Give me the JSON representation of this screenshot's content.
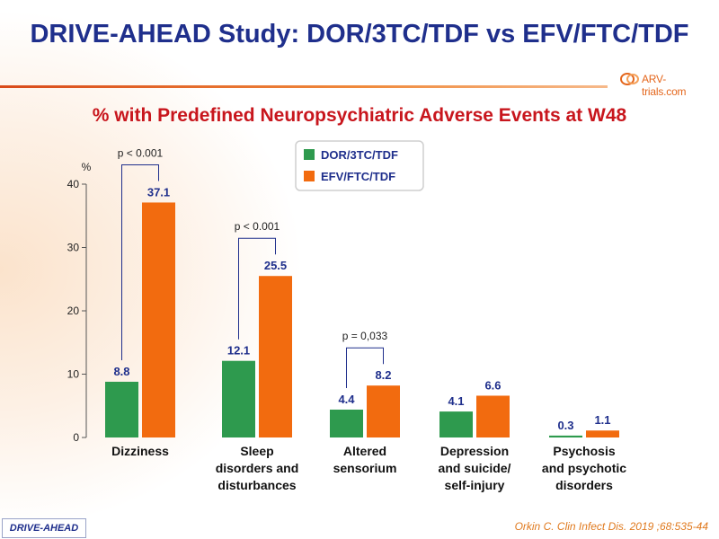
{
  "slide": {
    "title": "DRIVE-AHEAD Study: DOR/3TC/TDF vs EFV/FTC/TDF",
    "subtitle": "% with Predefined Neuropsychiatric Adverse Events at W48",
    "logo_text": "ARV-trials.com",
    "footer_tag": "DRIVE-AHEAD",
    "citation": "Orkin C. Clin Infect Dis. 2019 ;68:535-44"
  },
  "colors": {
    "title": "#1f2f8c",
    "subtitle": "#c8161d",
    "dor": "#2e9a4e",
    "efv": "#f26b0f",
    "label": "#1f2f8c"
  },
  "chart_data": {
    "type": "bar",
    "ylabel": "%",
    "ylim": [
      0,
      40
    ],
    "yticks": [
      0,
      10,
      20,
      30,
      40
    ],
    "categories": [
      [
        "Dizziness"
      ],
      [
        "Sleep",
        "disorders and",
        "disturbances"
      ],
      [
        "Altered",
        "sensorium"
      ],
      [
        "Depression",
        "and suicide/",
        "self-injury"
      ],
      [
        "Psychosis",
        "and psychotic",
        "disorders"
      ]
    ],
    "series": [
      {
        "name": "DOR/3TC/TDF",
        "values": [
          8.8,
          12.1,
          4.4,
          4.1,
          0.3
        ],
        "labels": [
          "8.8",
          "12.1",
          "4.4",
          "4.1",
          "0.3"
        ]
      },
      {
        "name": "EFV/FTC/TDF",
        "values": [
          37.1,
          25.5,
          8.2,
          6.6,
          1.1
        ],
        "labels": [
          "37.1",
          "25.5",
          "8.2",
          "6.6",
          "1.1"
        ]
      }
    ],
    "legend_position": "top-center",
    "annotations": [
      {
        "category_index": 0,
        "text": "p < 0.001"
      },
      {
        "category_index": 1,
        "text": "p < 0.001"
      },
      {
        "category_index": 2,
        "text": "p = 0,033"
      }
    ]
  }
}
